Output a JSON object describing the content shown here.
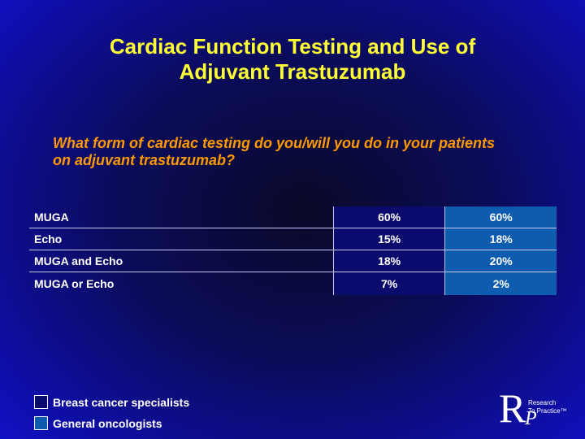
{
  "title": {
    "line1": "Cardiac Function Testing and Use of",
    "line2": "Adjuvant Trastuzumab"
  },
  "question": {
    "line1": "What form of cardiac testing do you/will you do in your patients",
    "line2": "on adjuvant trastuzumab?"
  },
  "colors": {
    "title": "#ffff33",
    "question": "#ff9900",
    "breast_cancer_specialists": "#0b0b6e",
    "general_oncologists": "#0d5cb0"
  },
  "chart_data": {
    "type": "table",
    "categories": [
      "MUGA",
      "Echo",
      "MUGA and Echo",
      "MUGA or Echo"
    ],
    "series": [
      {
        "name": "Breast cancer specialists",
        "values": [
          "60%",
          "15%",
          "18%",
          "7%"
        ]
      },
      {
        "name": "General oncologists",
        "values": [
          "60%",
          "18%",
          "20%",
          "2%"
        ]
      }
    ]
  },
  "legend": {
    "items": [
      "Breast cancer specialists",
      "General oncologists"
    ]
  },
  "logo": {
    "letter_r": "R",
    "letter_p": "P",
    "line1": "Research",
    "line2": "To Practice™"
  }
}
